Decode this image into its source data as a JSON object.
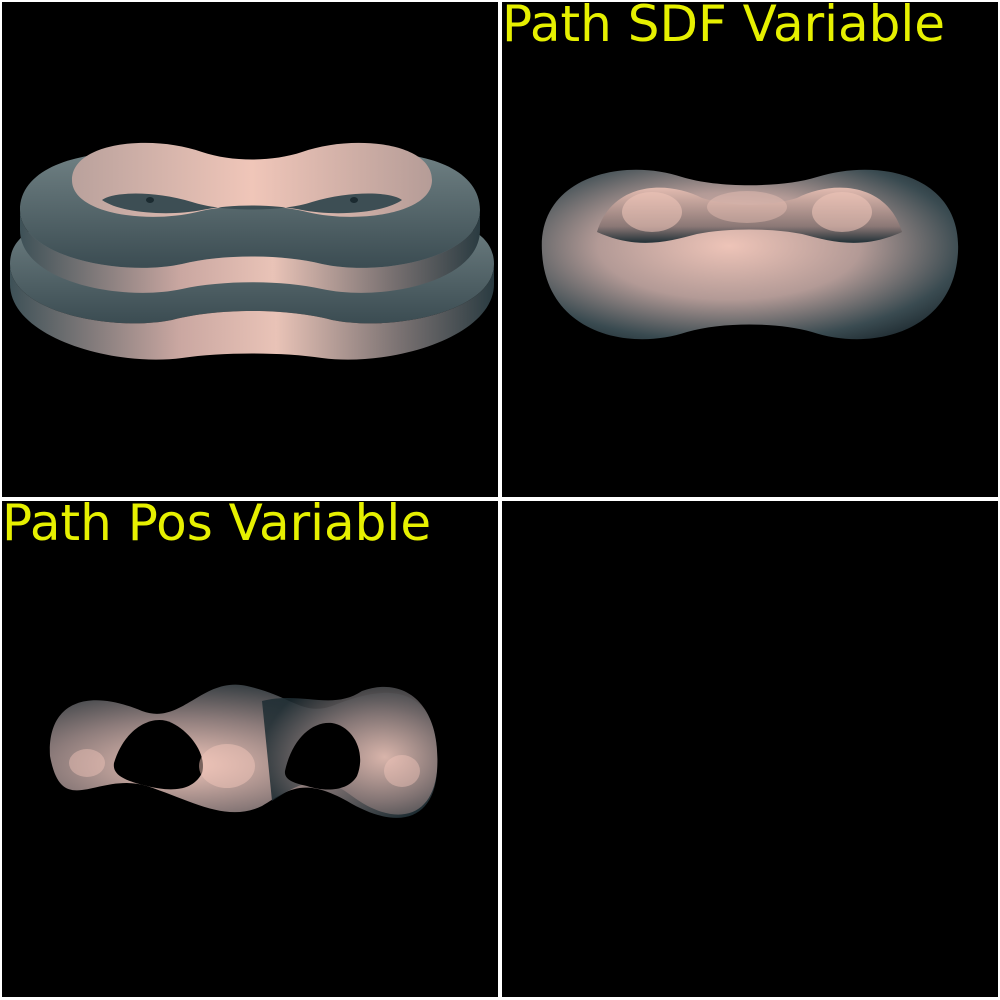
{
  "colors": {
    "background": "#000000",
    "divider": "#ffffff",
    "label": "#e6f000",
    "surface_highlight": "#f1c6ba",
    "surface_mid": "#9a8583",
    "surface_shadow": "#1e3038"
  },
  "viewports": [
    {
      "id": "top-left",
      "label": "",
      "scene": "extruded-rounded-path-plates"
    },
    {
      "id": "top-right",
      "label": "Path SDF Variable",
      "scene": "rounded-peanut-torus"
    },
    {
      "id": "bottom-left",
      "label": "Path Pos Variable",
      "scene": "wavy-figure-eight-ribbon"
    },
    {
      "id": "bottom-right",
      "label": "",
      "scene": "empty"
    }
  ]
}
